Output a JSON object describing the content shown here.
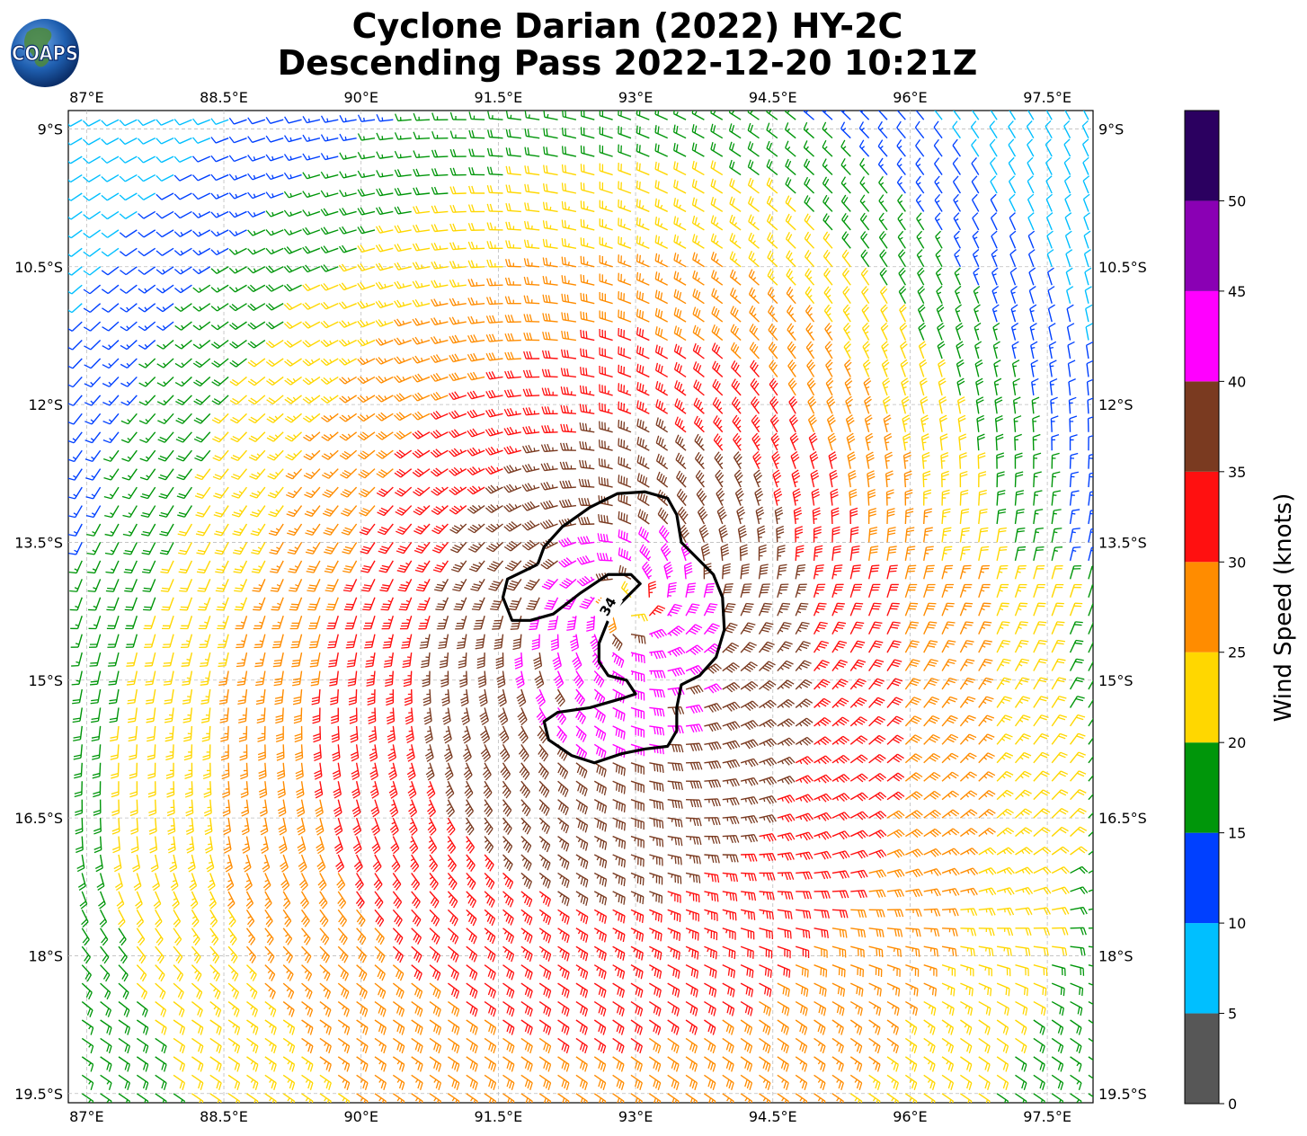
{
  "logo": {
    "text": "COAPS"
  },
  "title": {
    "line1": "Cyclone Darian (2022) HY-2C",
    "line2": "Descending Pass 2022-12-20 10:21Z"
  },
  "map": {
    "lon_range": [
      86.8,
      98.0
    ],
    "lat_range": [
      -19.6,
      -8.8
    ],
    "lon_ticks": [
      {
        "value": 87.0,
        "label": "87°E"
      },
      {
        "value": 88.5,
        "label": "88.5°E"
      },
      {
        "value": 90.0,
        "label": "90°E"
      },
      {
        "value": 91.5,
        "label": "91.5°E"
      },
      {
        "value": 93.0,
        "label": "93°E"
      },
      {
        "value": 94.5,
        "label": "94.5°E"
      },
      {
        "value": 96.0,
        "label": "96°E"
      },
      {
        "value": 97.5,
        "label": "97.5°E"
      }
    ],
    "lat_ticks": [
      {
        "value": -9.0,
        "label": "9°S"
      },
      {
        "value": -10.5,
        "label": "10.5°S"
      },
      {
        "value": -12.0,
        "label": "12°S"
      },
      {
        "value": -13.5,
        "label": "13.5°S"
      },
      {
        "value": -15.0,
        "label": "15°S"
      },
      {
        "value": -16.5,
        "label": "16.5°S"
      },
      {
        "value": -18.0,
        "label": "18°S"
      },
      {
        "value": -19.5,
        "label": "19.5°S"
      }
    ],
    "gridlines": true,
    "contour": {
      "label": "34",
      "points": [
        [
          91.93,
          -13.74
        ],
        [
          92.0,
          -13.55
        ],
        [
          92.2,
          -13.33
        ],
        [
          92.5,
          -13.12
        ],
        [
          92.8,
          -12.97
        ],
        [
          93.1,
          -12.95
        ],
        [
          93.35,
          -13.02
        ],
        [
          93.45,
          -13.2
        ],
        [
          93.5,
          -13.5
        ],
        [
          93.65,
          -13.65
        ],
        [
          93.85,
          -13.85
        ],
        [
          93.95,
          -14.1
        ],
        [
          93.97,
          -14.45
        ],
        [
          93.88,
          -14.75
        ],
        [
          93.7,
          -14.95
        ],
        [
          93.5,
          -15.05
        ],
        [
          93.45,
          -15.3
        ],
        [
          93.45,
          -15.55
        ],
        [
          93.35,
          -15.72
        ],
        [
          93.1,
          -15.75
        ],
        [
          92.85,
          -15.8
        ],
        [
          92.55,
          -15.9
        ],
        [
          92.3,
          -15.82
        ],
        [
          92.05,
          -15.65
        ],
        [
          92.0,
          -15.45
        ],
        [
          92.15,
          -15.35
        ],
        [
          92.5,
          -15.3
        ],
        [
          92.85,
          -15.2
        ],
        [
          93.0,
          -15.15
        ],
        [
          92.9,
          -15.0
        ],
        [
          92.7,
          -14.95
        ],
        [
          92.6,
          -14.8
        ],
        [
          92.6,
          -14.6
        ],
        [
          92.7,
          -14.35
        ],
        [
          92.8,
          -14.2
        ],
        [
          93.05,
          -13.95
        ],
        [
          92.95,
          -13.85
        ],
        [
          92.7,
          -13.85
        ],
        [
          92.4,
          -14.05
        ],
        [
          92.1,
          -14.28
        ],
        [
          91.85,
          -14.35
        ],
        [
          91.65,
          -14.35
        ],
        [
          91.55,
          -14.1
        ],
        [
          91.6,
          -13.9
        ],
        [
          91.93,
          -13.74
        ]
      ],
      "label_pos": [
        92.7,
        -14.2
      ]
    },
    "barb_field": {
      "center": [
        92.9,
        -14.2
      ],
      "grid_spacing_deg": 0.2
    }
  },
  "colorbar": {
    "title": "Wind Speed (knots)",
    "bins": [
      {
        "min": 0,
        "max": 5,
        "color": "#575757"
      },
      {
        "min": 5,
        "max": 10,
        "color": "#00bfff"
      },
      {
        "min": 10,
        "max": 15,
        "color": "#0040ff"
      },
      {
        "min": 15,
        "max": 20,
        "color": "#00960a"
      },
      {
        "min": 20,
        "max": 25,
        "color": "#ffd700"
      },
      {
        "min": 25,
        "max": 30,
        "color": "#ff8c00"
      },
      {
        "min": 30,
        "max": 35,
        "color": "#ff1010"
      },
      {
        "min": 35,
        "max": 40,
        "color": "#7a3a20"
      },
      {
        "min": 40,
        "max": 45,
        "color": "#ff00ff"
      },
      {
        "min": 45,
        "max": 50,
        "color": "#8a00b4"
      },
      {
        "min": 50,
        "max": 55,
        "color": "#2b0060"
      }
    ],
    "tick_labels": [
      "0",
      "5",
      "10",
      "15",
      "20",
      "25",
      "30",
      "35",
      "40",
      "45",
      "50"
    ]
  }
}
